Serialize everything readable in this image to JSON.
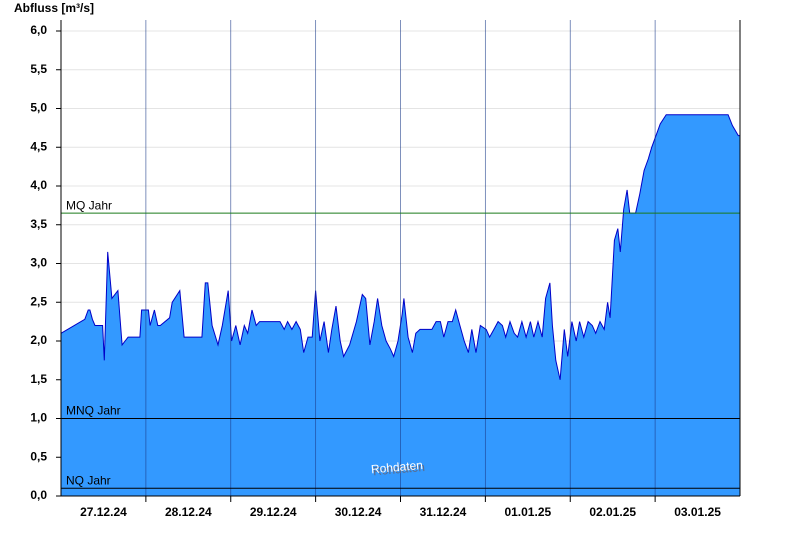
{
  "chart_data": {
    "type": "area",
    "title": "Abfluss [m³/s]",
    "annotation": "Rohdaten",
    "color": "#3399ff",
    "line_color": "#0000c8",
    "x": [
      0.0,
      0.28,
      0.32,
      0.34,
      0.37,
      0.4,
      0.49,
      0.51,
      0.55,
      0.6,
      0.67,
      0.72,
      0.79,
      0.93,
      0.95,
      1.03,
      1.05,
      1.1,
      1.14,
      1.17,
      1.28,
      1.31,
      1.4,
      1.45,
      1.66,
      1.7,
      1.73,
      1.78,
      1.85,
      1.9,
      1.97,
      2.01,
      2.06,
      2.11,
      2.16,
      2.2,
      2.25,
      2.3,
      2.34,
      2.58,
      2.63,
      2.67,
      2.72,
      2.77,
      2.82,
      2.86,
      2.91,
      2.96,
      3.0,
      3.05,
      3.1,
      3.15,
      3.19,
      3.24,
      3.29,
      3.33,
      3.4,
      3.48,
      3.55,
      3.59,
      3.64,
      3.69,
      3.73,
      3.78,
      3.83,
      3.88,
      3.92,
      3.97,
      4.02,
      4.04,
      4.09,
      4.14,
      4.18,
      4.23,
      4.37,
      4.42,
      4.47,
      4.51,
      4.56,
      4.61,
      4.65,
      4.7,
      4.75,
      4.8,
      4.84,
      4.89,
      4.94,
      5.01,
      5.05,
      5.1,
      5.15,
      5.2,
      5.24,
      5.29,
      5.34,
      5.38,
      5.43,
      5.48,
      5.53,
      5.57,
      5.62,
      5.67,
      5.71,
      5.76,
      5.79,
      5.83,
      5.88,
      5.93,
      5.97,
      6.02,
      6.07,
      6.11,
      6.16,
      6.21,
      6.26,
      6.3,
      6.35,
      6.4,
      6.44,
      6.47,
      6.52,
      6.56,
      6.59,
      6.63,
      6.67,
      6.7,
      6.77,
      6.82,
      6.87,
      6.92,
      6.96,
      7.01,
      7.06,
      7.13,
      7.86,
      7.91,
      7.98,
      8.0
    ],
    "values": [
      2.1,
      2.28,
      2.4,
      2.4,
      2.28,
      2.2,
      2.2,
      1.75,
      3.15,
      2.55,
      2.65,
      1.95,
      2.05,
      2.05,
      2.4,
      2.4,
      2.2,
      2.4,
      2.2,
      2.2,
      2.3,
      2.5,
      2.65,
      2.05,
      2.05,
      2.75,
      2.75,
      2.2,
      1.95,
      2.2,
      2.65,
      2.0,
      2.2,
      1.95,
      2.2,
      2.1,
      2.4,
      2.2,
      2.25,
      2.25,
      2.15,
      2.25,
      2.15,
      2.25,
      2.15,
      1.85,
      2.05,
      2.05,
      2.65,
      2.0,
      2.25,
      1.85,
      2.15,
      2.45,
      2.0,
      1.8,
      1.95,
      2.25,
      2.6,
      2.55,
      1.95,
      2.25,
      2.55,
      2.2,
      2.0,
      1.9,
      1.8,
      2.0,
      2.35,
      2.55,
      2.05,
      1.85,
      2.1,
      2.15,
      2.15,
      2.25,
      2.25,
      2.05,
      2.25,
      2.25,
      2.4,
      2.2,
      2.0,
      1.85,
      2.15,
      1.85,
      2.2,
      2.15,
      2.05,
      2.15,
      2.25,
      2.2,
      2.05,
      2.25,
      2.1,
      2.05,
      2.25,
      2.05,
      2.25,
      2.05,
      2.25,
      2.05,
      2.55,
      2.75,
      2.2,
      1.75,
      1.5,
      2.15,
      1.8,
      2.25,
      2.0,
      2.25,
      2.05,
      2.25,
      2.2,
      2.1,
      2.25,
      2.15,
      2.5,
      2.3,
      3.3,
      3.45,
      3.15,
      3.7,
      3.95,
      3.65,
      3.65,
      3.9,
      4.2,
      4.35,
      4.5,
      4.65,
      4.8,
      4.92,
      4.92,
      4.78,
      4.65,
      4.65
    ],
    "xlim": [
      0,
      8
    ],
    "xticks": [
      {
        "value": 0.5,
        "label": "27.12.24"
      },
      {
        "value": 1.5,
        "label": "28.12.24"
      },
      {
        "value": 2.5,
        "label": "29.12.24"
      },
      {
        "value": 3.5,
        "label": "30.12.24"
      },
      {
        "value": 4.5,
        "label": "31.12.24"
      },
      {
        "value": 5.5,
        "label": "01.01.25"
      },
      {
        "value": 6.5,
        "label": "02.01.25"
      },
      {
        "value": 7.5,
        "label": "03.01.25"
      }
    ],
    "ylim": [
      0,
      6
    ],
    "yticks": [
      {
        "value": 0,
        "label": "0,0"
      },
      {
        "value": 0.5,
        "label": "0,5"
      },
      {
        "value": 1,
        "label": "1,0"
      },
      {
        "value": 1.5,
        "label": "1,5"
      },
      {
        "value": 2,
        "label": "2,0"
      },
      {
        "value": 2.5,
        "label": "2,5"
      },
      {
        "value": 3,
        "label": "3,0"
      },
      {
        "value": 3.5,
        "label": "3,5"
      },
      {
        "value": 4,
        "label": "4,0"
      },
      {
        "value": 4.5,
        "label": "4,5"
      },
      {
        "value": 5,
        "label": "5,0"
      },
      {
        "value": 5.5,
        "label": "5,5"
      },
      {
        "value": 6,
        "label": "6,0"
      }
    ],
    "grid": true,
    "reference_lines": [
      {
        "label": "MQ Jahr",
        "value": 3.65,
        "color": "#1a7a1a"
      },
      {
        "label": "MNQ Jahr",
        "value": 1.0,
        "color": "#000000"
      },
      {
        "label": "NQ Jahr",
        "value": 0.1,
        "color": "#000000"
      }
    ]
  }
}
